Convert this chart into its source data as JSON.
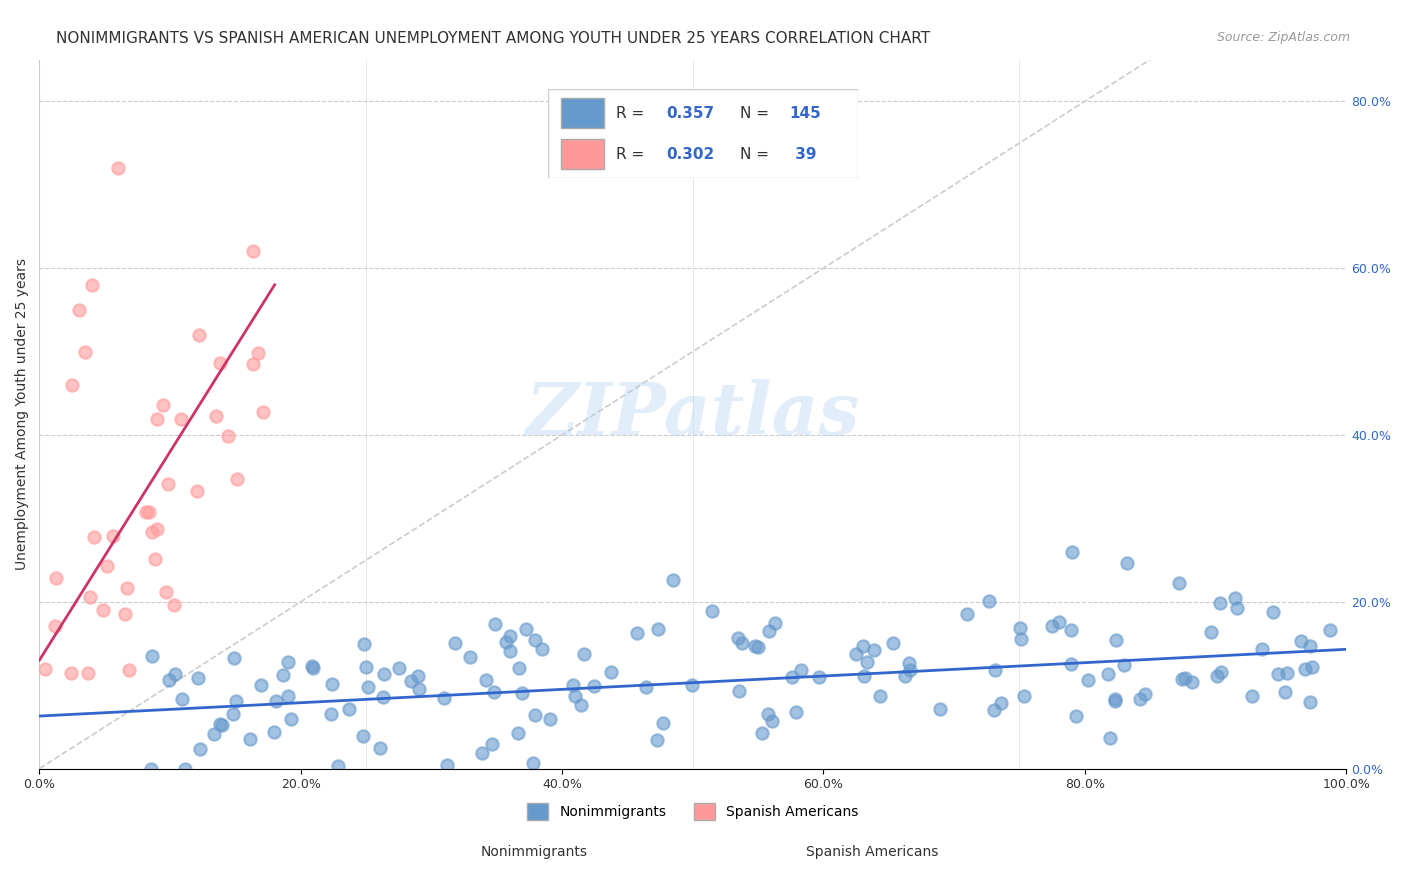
{
  "title": "NONIMMIGRANTS VS SPANISH AMERICAN UNEMPLOYMENT AMONG YOUTH UNDER 25 YEARS CORRELATION CHART",
  "source": "Source: ZipAtlas.com",
  "xlabel_bottom": "",
  "ylabel": "Unemployment Among Youth under 25 years",
  "x_tick_labels": [
    "0.0%",
    "20.0%",
    "40.0%",
    "60.0%",
    "80.0%",
    "100.0%"
  ],
  "x_tick_positions": [
    0,
    0.2,
    0.4,
    0.6,
    0.8,
    1.0
  ],
  "y_tick_labels_right": [
    "0.0%",
    "20.0%",
    "40.0%",
    "60.0%",
    "80.0%"
  ],
  "y_tick_positions": [
    0,
    0.2,
    0.4,
    0.6,
    0.8
  ],
  "xlim": [
    0,
    1.0
  ],
  "ylim": [
    0,
    0.85
  ],
  "blue_color": "#6699CC",
  "pink_color": "#FF9999",
  "blue_line_color": "#3366CC",
  "pink_line_color": "#CC3366",
  "legend_blue_label_R": "R = 0.357",
  "legend_blue_label_N": "N = 145",
  "legend_pink_label_R": "R = 0.302",
  "legend_pink_label_N": "N =  39",
  "R_blue": 0.357,
  "N_blue": 145,
  "R_pink": 0.302,
  "N_pink": 39,
  "watermark": "ZIPatlas",
  "watermark_color": "#AACCEE",
  "title_fontsize": 11,
  "source_fontsize": 9,
  "axis_label_fontsize": 10,
  "tick_fontsize": 9
}
